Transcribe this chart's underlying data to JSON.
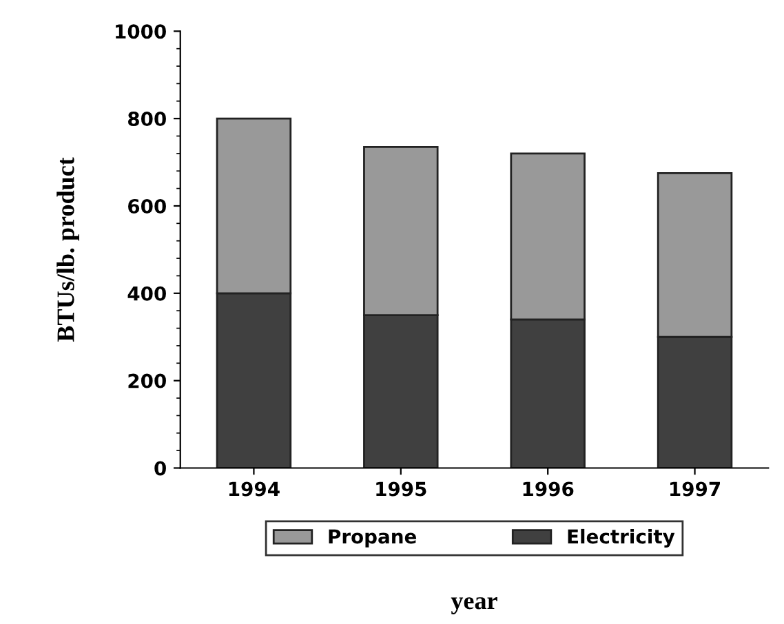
{
  "chart_data": {
    "type": "bar",
    "stacked": true,
    "xlabel": "year",
    "ylabel": "BTUs/lb. product",
    "categories": [
      "1994",
      "1995",
      "1996",
      "1997"
    ],
    "series": [
      {
        "name": "Electricity",
        "color": "#404040",
        "values": [
          400,
          350,
          340,
          300
        ]
      },
      {
        "name": "Propane",
        "color": "#999999",
        "values": [
          400,
          385,
          380,
          375
        ]
      }
    ],
    "ylim": [
      0,
      1000
    ],
    "yticks": [
      0,
      200,
      400,
      600,
      800,
      1000
    ],
    "legend": "bottom"
  }
}
